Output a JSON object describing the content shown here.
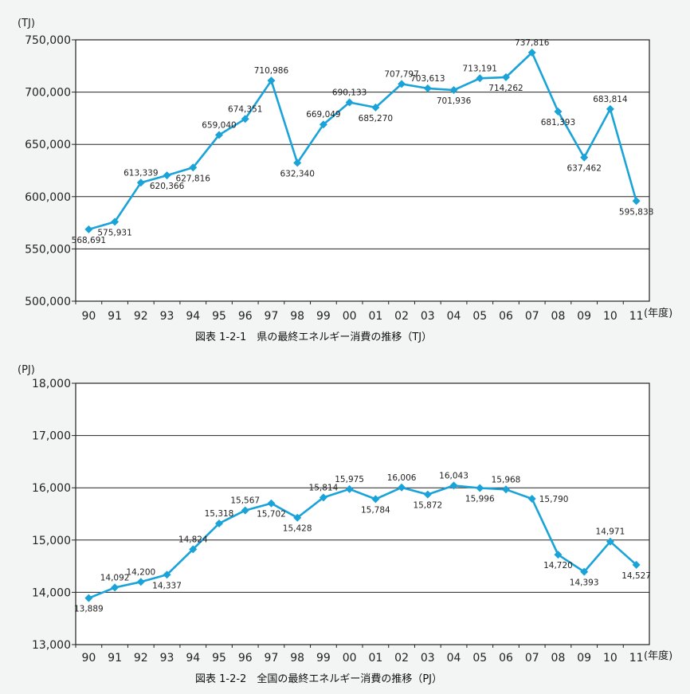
{
  "chart_data": [
    {
      "type": "line",
      "unit_label": "(TJ)",
      "x_unit_label": "(年度)",
      "caption": "図表 1-2-1　県の最終エネルギー消費の推移（TJ）",
      "categories": [
        "90",
        "91",
        "92",
        "93",
        "94",
        "95",
        "96",
        "97",
        "98",
        "99",
        "00",
        "01",
        "02",
        "03",
        "04",
        "05",
        "06",
        "07",
        "08",
        "09",
        "10",
        "11"
      ],
      "series": [
        {
          "values": [
            568691,
            575931,
            613339,
            620366,
            627816,
            659040,
            674351,
            710986,
            632340,
            669049,
            690133,
            685270,
            707797,
            703613,
            701936,
            713191,
            714262,
            737816,
            681393,
            637462,
            683814,
            595838
          ]
        }
      ],
      "value_labels": [
        "568,691",
        "575,931",
        "613,339",
        "620,366",
        "627,816",
        "659,040",
        "674,351",
        "710,986",
        "632,340",
        "669,049",
        "690,133",
        "685,270",
        "707,797",
        "703,613",
        "701,936",
        "713,191",
        "714,262",
        "737,816",
        "681,393",
        "637,462",
        "683,814",
        "595,838"
      ],
      "ylim": [
        500000,
        750000
      ],
      "yticks": [
        500000,
        550000,
        600000,
        650000,
        700000,
        750000
      ],
      "ytick_labels": [
        "500,000",
        "550,000",
        "600,000",
        "650,000",
        "700,000",
        "750,000"
      ],
      "grid": true,
      "line_color": "#1aa3d9",
      "marker_color": "#1aa3d9",
      "grid_color": "#222222"
    },
    {
      "type": "line",
      "unit_label": "(PJ)",
      "x_unit_label": "(年度)",
      "caption": "図表 1-2-2　全国の最終エネルギー消費の推移（PJ）",
      "categories": [
        "90",
        "91",
        "92",
        "93",
        "94",
        "95",
        "96",
        "97",
        "98",
        "99",
        "00",
        "01",
        "02",
        "03",
        "04",
        "05",
        "06",
        "07",
        "08",
        "09",
        "10",
        "11"
      ],
      "series": [
        {
          "values": [
            13889,
            14092,
            14200,
            14337,
            14824,
            15318,
            15567,
            15702,
            15428,
            15814,
            15975,
            15784,
            16006,
            15872,
            16043,
            15996,
            15968,
            15790,
            14720,
            14393,
            14971,
            14527
          ]
        }
      ],
      "value_labels": [
        "13,889",
        "14,092",
        "14,200",
        "14,337",
        "14,824",
        "15,318",
        "15,567",
        "15,702",
        "15,428",
        "15,814",
        "15,975",
        "15,784",
        "16,006",
        "15,872",
        "16,043",
        "15,996",
        "15,968",
        "15,790",
        "14,720",
        "14,393",
        "14,971",
        "14,527"
      ],
      "ylim": [
        13000,
        18000
      ],
      "yticks": [
        13000,
        14000,
        15000,
        16000,
        17000,
        18000
      ],
      "ytick_labels": [
        "13,000",
        "14,000",
        "15,000",
        "16,000",
        "17,000",
        "18,000"
      ],
      "grid": true,
      "line_color": "#1aa3d9",
      "marker_color": "#1aa3d9",
      "grid_color": "#222222"
    }
  ]
}
